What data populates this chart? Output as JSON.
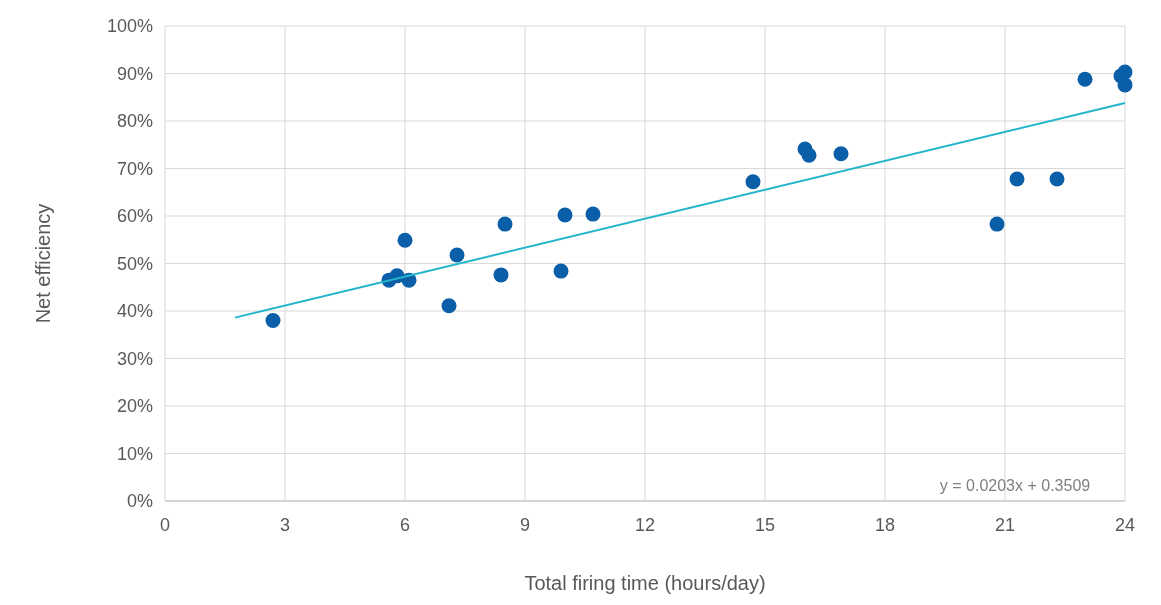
{
  "chart_data": {
    "type": "scatter",
    "xlabel": "Total firing time (hours/day)",
    "ylabel": "Net efficiency",
    "xlim": [
      0,
      24
    ],
    "xticks": [
      0,
      3,
      6,
      9,
      12,
      15,
      18,
      21,
      24
    ],
    "ylim": [
      0,
      100
    ],
    "yticks": [
      {
        "value": 0,
        "label": "0%"
      },
      {
        "value": 10,
        "label": "10%"
      },
      {
        "value": 20,
        "label": "20%"
      },
      {
        "value": 30,
        "label": "30%"
      },
      {
        "value": 40,
        "label": "40%"
      },
      {
        "value": 50,
        "label": "50%"
      },
      {
        "value": 60,
        "label": "60%"
      },
      {
        "value": 70,
        "label": "70%"
      },
      {
        "value": 80,
        "label": "80%"
      },
      {
        "value": 90,
        "label": "90%"
      },
      {
        "value": 100,
        "label": "100%"
      }
    ],
    "grid": true,
    "series": [
      {
        "marker": "circle",
        "color": "#0b5ea8",
        "x": [
          2.7,
          5.6,
          5.8,
          6.0,
          6.1,
          7.1,
          7.3,
          8.4,
          8.5,
          9.9,
          10.0,
          10.7,
          14.7,
          16.0,
          16.1,
          16.9,
          20.8,
          21.3,
          22.3,
          23.0,
          23.9,
          24.0,
          24.0
        ],
        "values": [
          38,
          46.5,
          47.4,
          54.9,
          46.5,
          41.1,
          51.8,
          47.6,
          58.3,
          48.4,
          60.2,
          60.4,
          67.2,
          74.1,
          72.8,
          73.1,
          58.3,
          67.8,
          67.8,
          88.8,
          89.5,
          90.3,
          87.6
        ]
      },
      {
        "type": "line",
        "color": "#22b5cc",
        "x": [
          1.75,
          24
        ],
        "values": [
          38.6,
          83.8
        ]
      }
    ],
    "annotations": [
      "y = 0.0203x + 0.3509"
    ]
  }
}
